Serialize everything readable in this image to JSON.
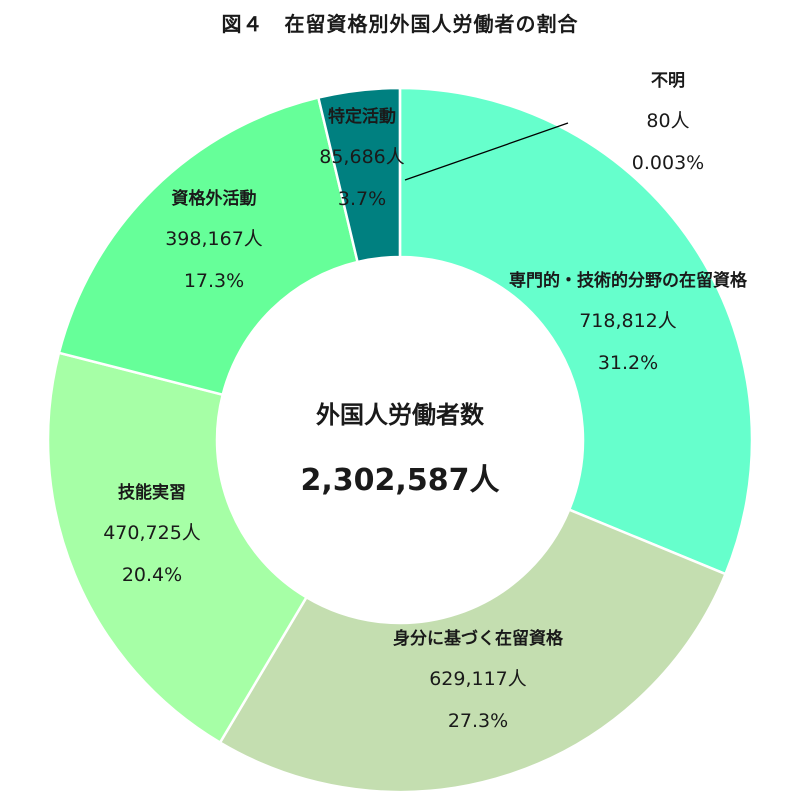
{
  "title": "図４　在留資格別外国人労働者の割合",
  "center": {
    "label": "外国人労働者数",
    "total": "2,302,587人"
  },
  "labels": [
    {
      "name": "専門的・技術的分野の在留資格",
      "count": "718,812人",
      "percent": "31.2%"
    },
    {
      "name": "身分に基づく在留資格",
      "count": "629,117人",
      "percent": "27.3%"
    },
    {
      "name": "技能実習",
      "count": "470,725人",
      "percent": "20.4%"
    },
    {
      "name": "資格外活動",
      "count": "398,167人",
      "percent": "17.3%"
    },
    {
      "name": "特定活動",
      "count": "85,686人",
      "percent": "3.7%"
    },
    {
      "name": "不明",
      "count": "80人",
      "percent": "0.003%"
    }
  ],
  "chart_data": {
    "type": "pie",
    "subtype": "donut",
    "title": "図４　在留資格別外国人労働者の割合",
    "center_label": "外国人労働者数",
    "total": 2302587,
    "total_unit": "人",
    "start_angle": "12 o'clock",
    "direction": "clockwise",
    "categories": [
      "専門的・技術的分野の在留資格",
      "身分に基づく在留資格",
      "技能実習",
      "資格外活動",
      "特定活動",
      "不明"
    ],
    "values": [
      718812,
      629117,
      470725,
      398167,
      85686,
      80
    ],
    "percentages": [
      31.2,
      27.3,
      20.4,
      17.3,
      3.7,
      0.003
    ],
    "colors": [
      "#66FFCC",
      "#C4DEB0",
      "#A6FFA6",
      "#66FF99",
      "#008080",
      "#008080"
    ],
    "legend": "none (data labels on slices)",
    "annotations": [
      "不明 label connected to slice with leader line"
    ]
  }
}
